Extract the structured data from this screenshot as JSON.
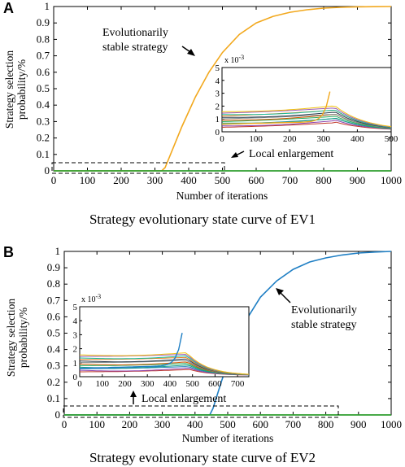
{
  "colors": {
    "esc_a": "#F2A81D",
    "esc_b": "#1f7fc4",
    "baseline": "#2e9e2e",
    "grid": "#000000"
  },
  "panels": [
    {
      "letter": "A",
      "ylabel_line1": "Strategy selection",
      "ylabel_line2": "probability/%",
      "xlabel": "Number of iterations",
      "caption": "Strategy evolutionary state curve of EV1",
      "annotation_line1": "Evolutionarily",
      "annotation_line2": "stable strategy",
      "inset_label": "Local enlargement",
      "inset_exponent": "x 10",
      "inset_exponent_power": "-3"
    },
    {
      "letter": "B",
      "ylabel_line1": "Strategy selection",
      "ylabel_line2": "probability/%",
      "xlabel": "Number of iterations",
      "caption": "Strategy evolutionary state curve of EV2",
      "annotation_line1": "Evolutionarily",
      "annotation_line2": "stable strategy",
      "inset_label": "Local enlargement",
      "inset_exponent": "x 10",
      "inset_exponent_power": "-3"
    }
  ],
  "chart_data": [
    {
      "type": "line",
      "title": "Strategy evolutionary state curve of EV1",
      "xlabel": "Number of iterations",
      "ylabel": "Strategy selection probability/%",
      "xlim": [
        0,
        1000
      ],
      "ylim": [
        0,
        1
      ],
      "xticks": [
        0,
        100,
        200,
        300,
        400,
        500,
        600,
        700,
        800,
        900,
        1000
      ],
      "yticks": [
        0,
        0.1,
        0.2,
        0.3,
        0.4,
        0.5,
        0.6,
        0.7,
        0.8,
        0.9,
        1
      ],
      "series": [
        {
          "x": [
            0,
            320,
            330,
            350,
            380,
            420,
            460,
            500,
            550,
            600,
            650,
            700,
            750,
            800,
            850,
            900,
            950,
            1000
          ],
          "y": [
            0,
            0,
            0.02,
            0.12,
            0.27,
            0.45,
            0.6,
            0.72,
            0.83,
            0.9,
            0.94,
            0.965,
            0.98,
            0.99,
            0.995,
            0.998,
            0.999,
            1
          ]
        },
        {
          "x": [
            0,
            1000
          ],
          "y": [
            0,
            0
          ]
        }
      ],
      "inset": {
        "xlim": [
          0,
          500
        ],
        "ylim": [
          0,
          5
        ],
        "y_scale": "x 10^-3",
        "xticks": [
          0,
          100,
          200,
          300,
          400,
          500
        ],
        "yticks": [
          0,
          1,
          2,
          3,
          4,
          5
        ]
      }
    },
    {
      "type": "line",
      "title": "Strategy evolutionary state curve of EV2",
      "xlabel": "Number of iterations",
      "ylabel": "Strategy selection probability/%",
      "xlim": [
        0,
        1000
      ],
      "ylim": [
        0,
        1
      ],
      "xticks": [
        0,
        100,
        200,
        300,
        400,
        500,
        600,
        700,
        800,
        900,
        1000
      ],
      "yticks": [
        0,
        0.1,
        0.2,
        0.3,
        0.4,
        0.5,
        0.6,
        0.7,
        0.8,
        0.9,
        1
      ],
      "series": [
        {
          "x": [
            0,
            445,
            455,
            480,
            510,
            550,
            600,
            650,
            700,
            750,
            800,
            850,
            900,
            950,
            1000
          ],
          "y": [
            0,
            0,
            0.04,
            0.2,
            0.38,
            0.56,
            0.72,
            0.82,
            0.89,
            0.935,
            0.96,
            0.978,
            0.99,
            0.996,
            1
          ]
        },
        {
          "x": [
            0,
            1000
          ],
          "y": [
            0,
            0
          ]
        }
      ],
      "inset": {
        "xlim": [
          0,
          750
        ],
        "ylim": [
          0,
          5
        ],
        "y_scale": "x 10^-3",
        "xticks": [
          0,
          100,
          200,
          300,
          400,
          500,
          600,
          700
        ],
        "yticks": [
          0,
          1,
          2,
          3,
          4,
          5
        ]
      }
    }
  ]
}
